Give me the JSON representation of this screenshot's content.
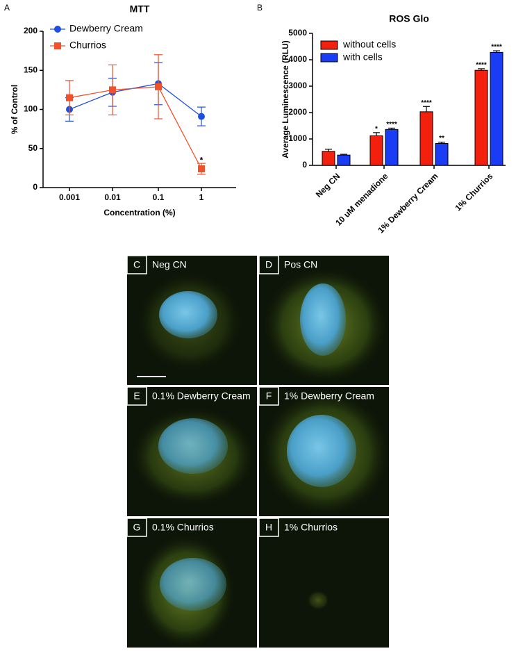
{
  "chart_data": [
    {
      "type": "line",
      "panel_label": "A",
      "title": "MTT",
      "x_label": "Concentration (%)",
      "y_label": "% of Control",
      "categories": [
        "0.001",
        "0.01",
        "0.1",
        "1"
      ],
      "series": [
        {
          "name": "Dewberry Cream",
          "color": "#1f4fe0",
          "marker": "circle",
          "values": [
            100,
            122,
            133,
            91
          ],
          "errors": [
            15,
            18,
            27,
            12
          ],
          "annotations": [
            null,
            null,
            null,
            null
          ]
        },
        {
          "name": "Churrios",
          "color": "#f0502a",
          "marker": "square",
          "values": [
            115,
            125,
            129,
            24
          ],
          "errors": [
            22,
            32,
            41,
            7
          ],
          "annotations": [
            null,
            null,
            null,
            "*"
          ]
        }
      ],
      "ylim": [
        0,
        200
      ],
      "yticks": [
        0,
        50,
        100,
        150,
        200
      ],
      "legend": "top-left"
    },
    {
      "type": "bar",
      "panel_label": "B",
      "title": "ROS Glo",
      "y_label": "Average Luminescence (RLU)",
      "categories": [
        "Neg CN",
        "10 uM menadione",
        "1% Dewberry Cream",
        "1% Churrios"
      ],
      "series": [
        {
          "name": "without cells",
          "color": "#f4200e",
          "values": [
            530,
            1120,
            2030,
            3600
          ],
          "errors": [
            80,
            120,
            200,
            60
          ],
          "annotations": [
            null,
            "*",
            "****",
            "****"
          ]
        },
        {
          "name": "with cells",
          "color": "#1a3cf5",
          "values": [
            390,
            1360,
            830,
            4280
          ],
          "errors": [
            30,
            50,
            50,
            60
          ],
          "annotations": [
            null,
            "****",
            "**",
            "****"
          ]
        }
      ],
      "ylim": [
        0,
        5000
      ],
      "yticks": [
        0,
        1000,
        2000,
        3000,
        4000,
        5000
      ],
      "legend": "top-left"
    }
  ],
  "panels": [
    {
      "letter": "C",
      "label": "Neg CN"
    },
    {
      "letter": "D",
      "label": "Pos CN"
    },
    {
      "letter": "E",
      "label": "0.1% Dewberry Cream"
    },
    {
      "letter": "F",
      "label": "1% Dewberry Cream"
    },
    {
      "letter": "G",
      "label": "0.1% Churrios"
    },
    {
      "letter": "H",
      "label": "1% Churrios"
    }
  ]
}
